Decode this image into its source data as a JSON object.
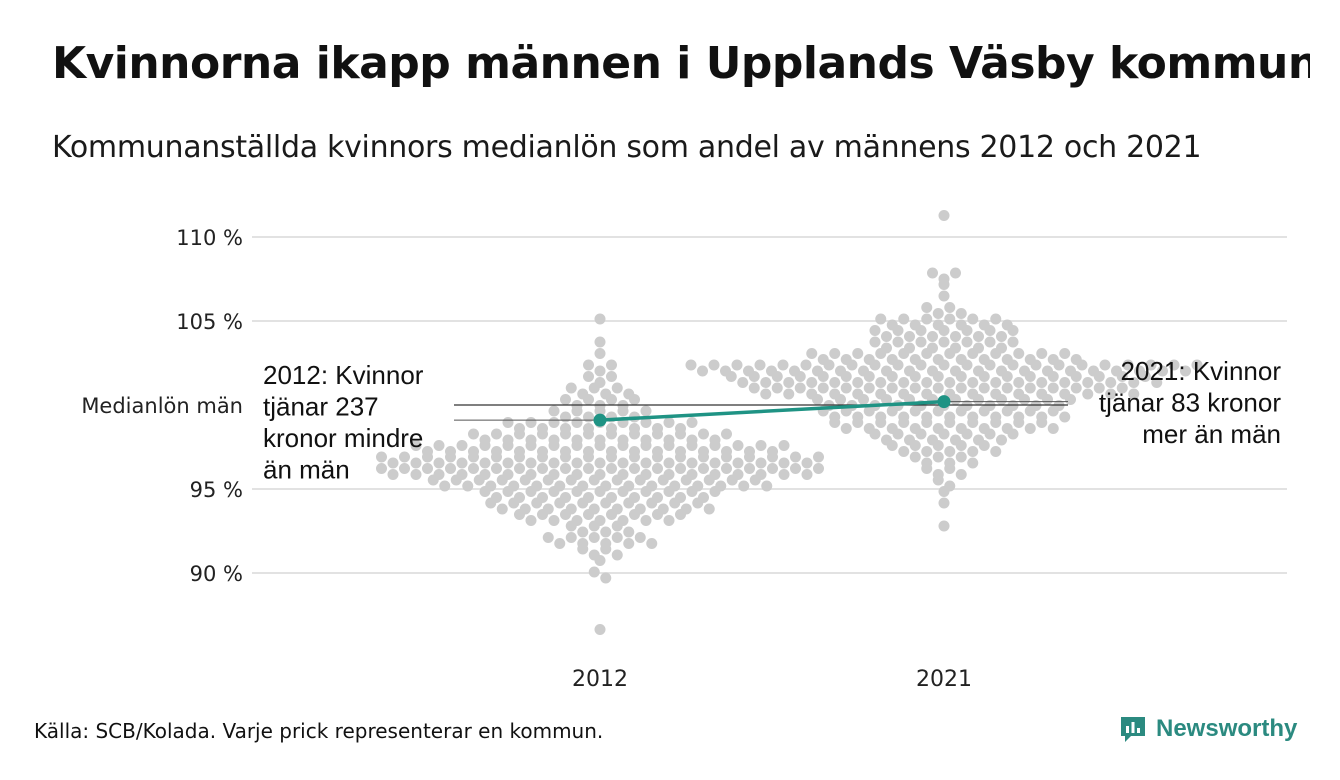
{
  "title": "Kvinnorna ikapp männen i Upplands Väsby kommun",
  "subtitle": "Kommunanställda kvinnors medianlön som andel av männens 2012 och 2021",
  "source": "Källa: SCB/Kolada. Varje prick representerar en kommun.",
  "brand": {
    "name": "Newsworthy",
    "icon": "newsworthy-logo-icon",
    "color": "#2b8a80"
  },
  "colors": {
    "dots": "#cccccc",
    "highlight": "#1f9384",
    "grid": "#e2e2e2",
    "reference": "#333333"
  },
  "chart_data": {
    "type": "scatter",
    "subtype": "beeswarm",
    "categories": [
      "2012",
      "2021"
    ],
    "y_ticks": [
      {
        "value": 90,
        "label": "90 %"
      },
      {
        "value": 95,
        "label": "95 %"
      },
      {
        "value": 105,
        "label": "105 %"
      },
      {
        "value": 110,
        "label": "110 %"
      }
    ],
    "reference_line": {
      "value": 100,
      "label": "Medianlön män"
    },
    "ylim": [
      86,
      111.5
    ],
    "grid": true,
    "swarm_summary": {
      "2012": {
        "min": 86.6,
        "max": 105.2,
        "peak_density": 96.5
      },
      "2021": {
        "min": 92.6,
        "max": 111.3,
        "peak_density": 101.5
      }
    },
    "highlight_series": {
      "color": "#1f9384",
      "points": [
        {
          "x": "2012",
          "y": 99.1
        },
        {
          "x": "2021",
          "y": 100.2
        }
      ]
    },
    "annotations": [
      {
        "x": "2012",
        "side": "left",
        "lines": [
          "2012: Kvinnor",
          "tjänar 237",
          "kronor mindre",
          "än män"
        ]
      },
      {
        "x": "2021",
        "side": "right",
        "lines": [
          "2021: Kvinnor",
          "tjänar 83 kronor",
          "mer än män"
        ]
      }
    ]
  }
}
